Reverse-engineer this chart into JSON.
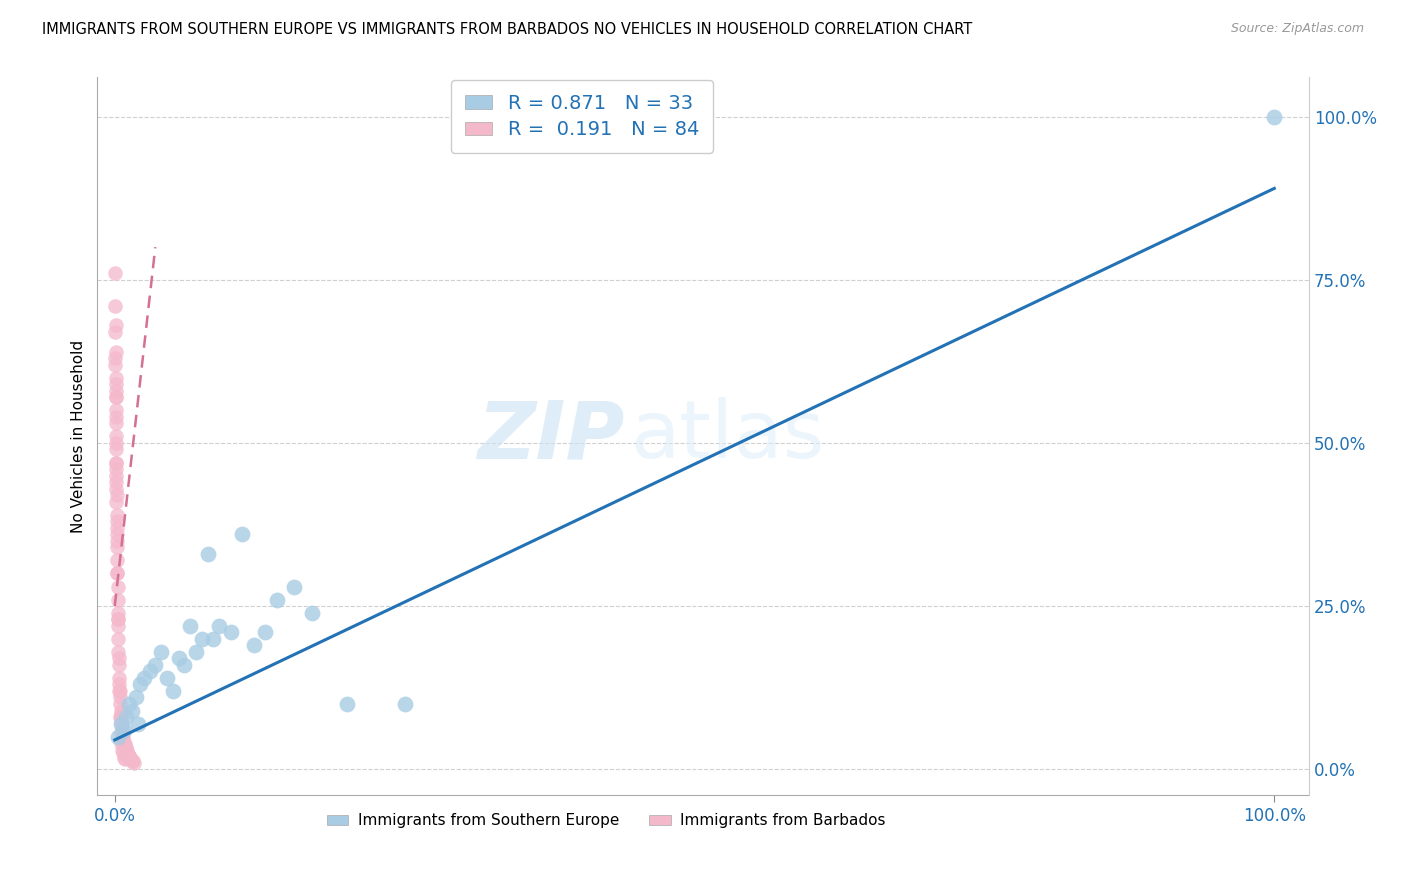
{
  "title": "IMMIGRANTS FROM SOUTHERN EUROPE VS IMMIGRANTS FROM BARBADOS NO VEHICLES IN HOUSEHOLD CORRELATION CHART",
  "source": "Source: ZipAtlas.com",
  "ylabel": "No Vehicles in Household",
  "y_tick_labels": [
    "0.0%",
    "25.0%",
    "50.0%",
    "75.0%",
    "100.0%"
  ],
  "y_tick_positions": [
    0,
    25,
    50,
    75,
    100
  ],
  "xlim": [
    -1.5,
    103
  ],
  "ylim": [
    -4,
    106
  ],
  "legend1_R": "0.871",
  "legend1_N": "33",
  "legend2_R": "0.191",
  "legend2_N": "84",
  "legend1_label": "Immigrants from Southern Europe",
  "legend2_label": "Immigrants from Barbados",
  "blue_color": "#a8cce4",
  "pink_color": "#f4b8cb",
  "trend_blue": "#2272b5",
  "trend_pink": "#d47090",
  "watermark_zip": "ZIP",
  "watermark_atlas": "atlas",
  "blue_trend_x0": 0,
  "blue_trend_y0": 4.5,
  "blue_trend_x1": 100,
  "blue_trend_y1": 89.0,
  "pink_trend_x0": 0,
  "pink_trend_y0": 25.0,
  "pink_trend_x1": 3.5,
  "pink_trend_y1": 80.0,
  "blue_scatter_x": [
    0.3,
    0.5,
    0.8,
    1.0,
    1.2,
    1.5,
    1.8,
    2.0,
    2.2,
    2.5,
    3.0,
    3.5,
    4.0,
    4.5,
    5.0,
    5.5,
    6.0,
    6.5,
    7.0,
    7.5,
    8.0,
    8.5,
    9.0,
    10.0,
    11.0,
    12.0,
    13.0,
    14.0,
    15.5,
    17.0,
    20.0,
    25.0,
    100.0
  ],
  "blue_scatter_y": [
    5.0,
    7.0,
    6.0,
    8.0,
    10.0,
    9.0,
    11.0,
    7.0,
    13.0,
    14.0,
    15.0,
    16.0,
    18.0,
    14.0,
    12.0,
    17.0,
    16.0,
    22.0,
    18.0,
    20.0,
    33.0,
    20.0,
    22.0,
    21.0,
    36.0,
    19.0,
    21.0,
    26.0,
    28.0,
    24.0,
    10.0,
    10.0,
    100.0
  ],
  "pink_scatter_x": [
    0.05,
    0.05,
    0.05,
    0.05,
    0.07,
    0.07,
    0.08,
    0.08,
    0.08,
    0.09,
    0.1,
    0.1,
    0.1,
    0.11,
    0.11,
    0.12,
    0.12,
    0.13,
    0.13,
    0.14,
    0.15,
    0.15,
    0.16,
    0.16,
    0.17,
    0.18,
    0.19,
    0.2,
    0.2,
    0.22,
    0.24,
    0.25,
    0.26,
    0.28,
    0.3,
    0.3,
    0.32,
    0.35,
    0.38,
    0.4,
    0.42,
    0.45,
    0.48,
    0.5,
    0.52,
    0.55,
    0.58,
    0.6,
    0.63,
    0.65,
    0.68,
    0.7,
    0.75,
    0.8,
    0.85,
    0.9,
    0.95,
    1.0,
    1.05,
    1.1,
    1.15,
    1.2,
    1.25,
    1.3,
    1.35,
    1.4,
    1.5,
    1.6,
    1.7,
    0.06,
    0.09,
    0.13,
    0.18,
    0.22,
    0.27,
    0.33,
    0.4,
    0.46,
    0.52,
    0.58,
    0.64,
    0.7,
    0.78,
    0.85
  ],
  "pink_scatter_y": [
    63.0,
    67.0,
    71.0,
    76.0,
    57.0,
    60.0,
    54.0,
    58.0,
    64.0,
    68.0,
    51.0,
    55.0,
    59.0,
    49.0,
    53.0,
    46.0,
    50.0,
    44.0,
    47.0,
    43.0,
    41.0,
    45.0,
    39.0,
    42.0,
    37.0,
    36.0,
    34.0,
    32.0,
    35.0,
    30.0,
    28.0,
    26.0,
    24.0,
    22.0,
    20.0,
    23.0,
    18.0,
    16.0,
    14.0,
    13.0,
    12.0,
    11.0,
    10.0,
    9.0,
    8.5,
    8.0,
    7.5,
    7.0,
    6.5,
    6.0,
    5.5,
    5.0,
    4.5,
    4.0,
    3.8,
    3.5,
    3.2,
    3.0,
    2.8,
    2.5,
    2.3,
    2.1,
    2.0,
    1.8,
    1.6,
    1.5,
    1.3,
    1.2,
    1.0,
    62.0,
    57.0,
    47.0,
    38.0,
    30.0,
    23.0,
    17.0,
    12.0,
    8.0,
    5.5,
    4.0,
    3.0,
    2.5,
    1.8,
    1.5
  ]
}
